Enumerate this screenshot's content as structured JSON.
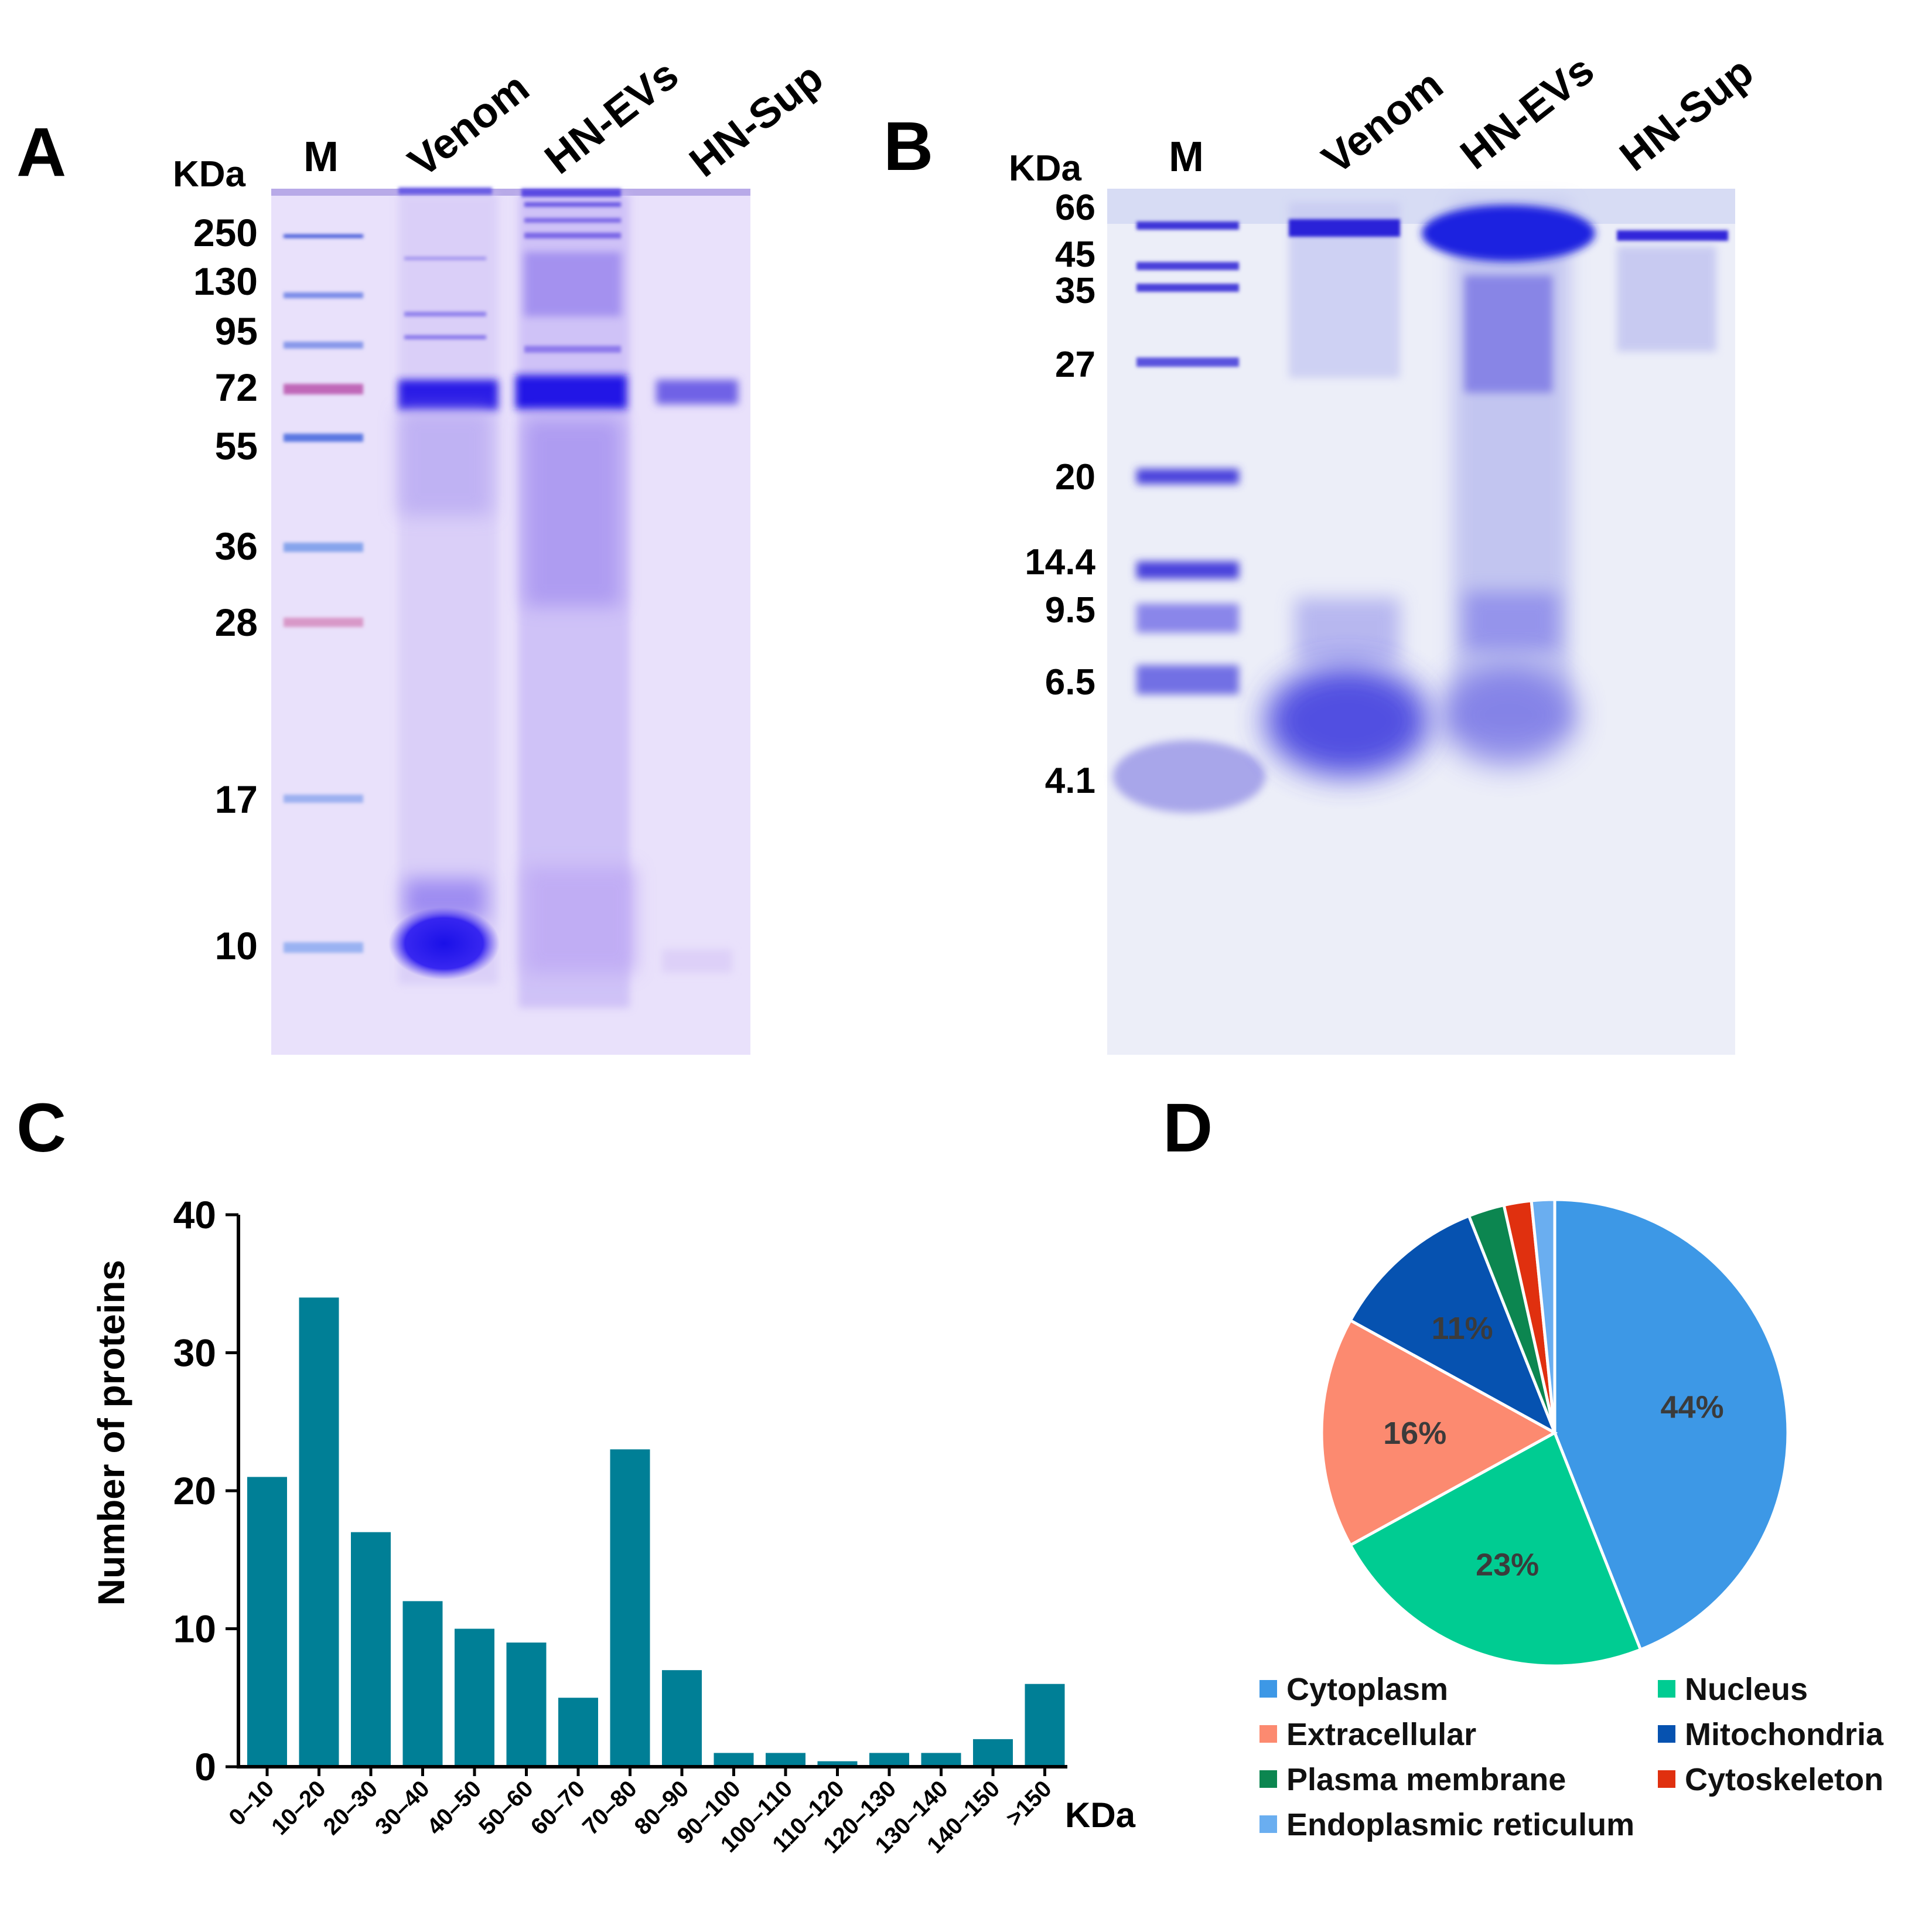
{
  "panels": {
    "a": {
      "letter": "A",
      "kda_label": "KDa",
      "lanes": [
        "M",
        "Venom",
        "HN-EVs",
        "HN-Sup"
      ],
      "markers": [
        "250",
        "130",
        "95",
        "72",
        "55",
        "36",
        "28",
        "17",
        "10"
      ]
    },
    "b": {
      "letter": "B",
      "kda_label": "KDa",
      "lanes": [
        "M",
        "Venom",
        "HN-EVs",
        "HN-Sup"
      ],
      "markers": [
        "66",
        "45",
        "35",
        "27",
        "20",
        "14.4",
        "9.5",
        "6.5",
        "4.1"
      ]
    },
    "c": {
      "letter": "C"
    },
    "d": {
      "letter": "D"
    }
  },
  "chart_data": [
    {
      "type": "bar",
      "panel": "C",
      "categories": [
        "0–10",
        "10–20",
        "20–30",
        "30–40",
        "40–50",
        "50–60",
        "60–70",
        "70–80",
        "80–90",
        "90–100",
        "100–110",
        "110–120",
        "120–130",
        "130–140",
        "140–150",
        ">150"
      ],
      "values": [
        21,
        34,
        17,
        12,
        10,
        9,
        5,
        23,
        7,
        1,
        1,
        0.4,
        1,
        1,
        2,
        6
      ],
      "ylabel": "Number of proteins",
      "xlabel": "KDa",
      "ylim": [
        0,
        40
      ],
      "yticks": [
        "0",
        "10",
        "20",
        "30",
        "40"
      ],
      "bar_color": "#007f96",
      "grid": false
    },
    {
      "type": "pie",
      "panel": "D",
      "slices": [
        {
          "label": "Cytoplasm",
          "value": 44,
          "text": "44%",
          "color": "#3d98e6"
        },
        {
          "label": "Nucleus",
          "value": 23,
          "text": "23%",
          "color": "#00cc92"
        },
        {
          "label": "Extracellular",
          "value": 16,
          "text": "16%",
          "color": "#fc8a70"
        },
        {
          "label": "Mitochondria",
          "value": 11,
          "text": "11%",
          "color": "#0652b0"
        },
        {
          "label": "Plasma membrane",
          "value": 2.5,
          "text": "",
          "color": "#0c8650"
        },
        {
          "label": "Cytoskeleton",
          "value": 1.9,
          "text": "",
          "color": "#e0300f"
        },
        {
          "label": "Endoplasmic reticulum",
          "value": 1.6,
          "text": "",
          "color": "#6aaef0"
        }
      ],
      "legend_placement": "bottom"
    }
  ]
}
